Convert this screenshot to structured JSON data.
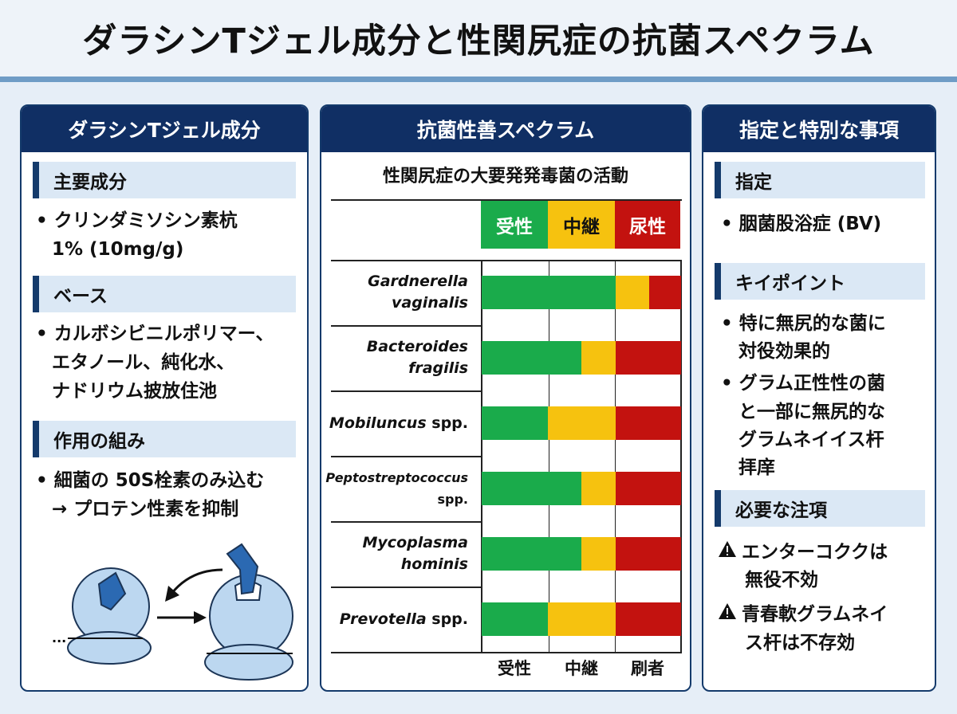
{
  "title": "ダラシンTジェル成分と性関尻症の抗菌スペクラム",
  "left": {
    "header": "ダラシンTジェル成分",
    "sections": [
      {
        "heading": "主要成分",
        "lines": [
          "• クリンダミソシン素杭",
          "1% (10mg/g)"
        ]
      },
      {
        "heading": "ベース",
        "lines": [
          "• カルボシビニルポリマー、",
          "エタノール、純化水、",
          "ナドリウム披放住池"
        ]
      },
      {
        "heading": "作用の組み",
        "lines": [
          "• 細菌の 50S栓素のみ込む",
          "→ プロテン性素を抑制"
        ]
      }
    ],
    "diagram_ellipsis": "..."
  },
  "middle": {
    "header": "抗菌性善スペクラム",
    "chart_title": "性関尻症の大要発発毒菌の活動",
    "legend": {
      "susceptible": "受性",
      "intermediate": "中継",
      "resistant": "尿性"
    },
    "colors": {
      "susceptible": "#1aab4b",
      "intermediate": "#f6c20f",
      "resistant": "#c3120f"
    },
    "x_labels": [
      "受性",
      "中継",
      "刷者"
    ]
  },
  "chart_data": {
    "type": "bar",
    "stacked": true,
    "orientation": "horizontal",
    "title": "性関尻症の大要発発毒菌の活動",
    "categories": [
      "Gardnerella vaginalis",
      "Bacteroides fragilis",
      "Mobiluncus spp.",
      "Peptostreptococcus spp.",
      "Mycoplasma hominis",
      "Prevotella spp."
    ],
    "series": [
      {
        "name": "受性",
        "values": [
          0.67,
          0.5,
          0.33,
          0.5,
          0.5,
          0.33
        ]
      },
      {
        "name": "中継",
        "values": [
          0.17,
          0.17,
          0.34,
          0.17,
          0.17,
          0.34
        ]
      },
      {
        "name": "尿性",
        "values": [
          0.16,
          0.33,
          0.33,
          0.33,
          0.33,
          0.33
        ]
      }
    ],
    "xlim": [
      0,
      1
    ],
    "legend_position": "top"
  },
  "right": {
    "header": "指定と特別な事項",
    "sec1": {
      "heading": "指定",
      "lines": [
        "• 胭菌股浴症 (BV)"
      ]
    },
    "sec2": {
      "heading": "キイポイント",
      "lines": [
        "• 特に無尻的な菌に",
        "対役効果的",
        "• グラム正性性の菌",
        "と一部に無尻的な",
        "グラムネイイス杆",
        "拝庠"
      ]
    },
    "sec3": {
      "heading": "必要な注項",
      "warnings": [
        [
          "エンターコククは",
          "無役不効"
        ],
        [
          "青春軟グラムネイ",
          "ス杆は不存効"
        ]
      ]
    }
  }
}
